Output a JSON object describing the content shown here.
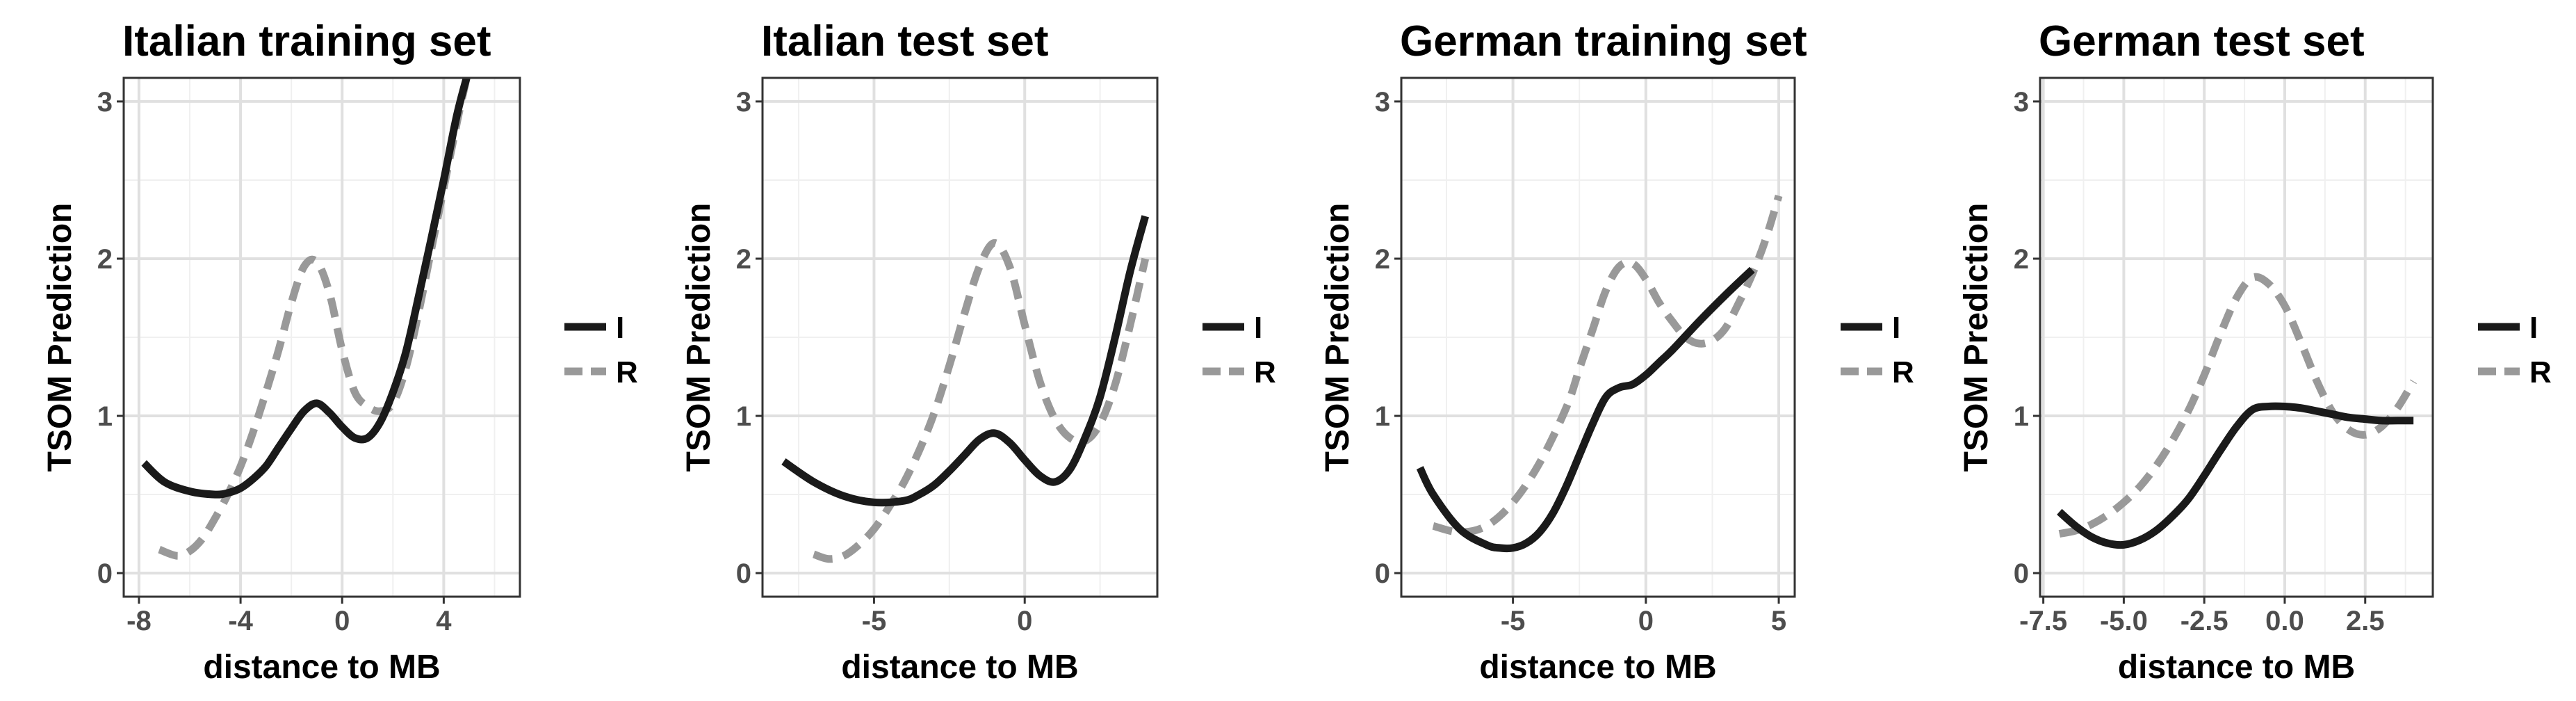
{
  "chart_data": [
    {
      "type": "line",
      "title": "Italian training set",
      "xlabel": "distance to MB",
      "ylabel": "TSOM Prediction",
      "xlim": [
        -8.6,
        7.0
      ],
      "ylim": [
        -0.15,
        3.15
      ],
      "xticks": [
        -8,
        -4,
        0,
        4
      ],
      "xtick_labels": [
        "-8",
        "-4",
        "0",
        "4"
      ],
      "yticks": [
        0,
        1,
        2,
        3
      ],
      "ytick_labels": [
        "0",
        "1",
        "2",
        "3"
      ],
      "grid": true,
      "legend_position": "right",
      "series": [
        {
          "name": "I",
          "style": "solid",
          "color": "#1a1a1a",
          "x": [
            -7.8,
            -7,
            -6,
            -5,
            -4.5,
            -4,
            -3.5,
            -3,
            -2.5,
            -2,
            -1.5,
            -1,
            -0.5,
            0,
            0.5,
            1,
            1.5,
            2,
            2.5,
            3,
            3.5,
            4,
            4.5,
            4.9
          ],
          "y": [
            0.7,
            0.58,
            0.52,
            0.5,
            0.51,
            0.54,
            0.6,
            0.68,
            0.8,
            0.92,
            1.03,
            1.08,
            1.02,
            0.93,
            0.86,
            0.86,
            0.96,
            1.15,
            1.4,
            1.75,
            2.12,
            2.5,
            2.9,
            3.15
          ]
        },
        {
          "name": "R",
          "style": "dashed",
          "color": "#999999",
          "x": [
            -7.2,
            -6.5,
            -6,
            -5.5,
            -5,
            -4.5,
            -4,
            -3.5,
            -3,
            -2.5,
            -2,
            -1.5,
            -1,
            -0.5,
            0,
            0.5,
            1,
            1.5,
            2,
            2.5,
            3,
            3.5,
            4,
            4.5,
            4.9
          ],
          "y": [
            0.15,
            0.11,
            0.14,
            0.22,
            0.35,
            0.5,
            0.68,
            0.9,
            1.15,
            1.42,
            1.72,
            1.95,
            1.98,
            1.78,
            1.42,
            1.15,
            1.06,
            1.03,
            1.08,
            1.3,
            1.65,
            2.05,
            2.45,
            2.85,
            3.15
          ]
        }
      ]
    },
    {
      "type": "line",
      "title": "Italian test set",
      "xlabel": "distance to MB",
      "ylabel": "TSOM Prediction",
      "xlim": [
        -8.7,
        4.4
      ],
      "ylim": [
        -0.15,
        3.15
      ],
      "xticks": [
        -5,
        0
      ],
      "xtick_labels": [
        "-5",
        "0"
      ],
      "yticks": [
        0,
        1,
        2,
        3
      ],
      "ytick_labels": [
        "0",
        "1",
        "2",
        "3"
      ],
      "grid": true,
      "legend_position": "right",
      "series": [
        {
          "name": "I",
          "style": "solid",
          "color": "#1a1a1a",
          "x": [
            -8,
            -7,
            -6,
            -5,
            -4,
            -3.5,
            -3,
            -2.5,
            -2,
            -1.5,
            -1,
            -0.5,
            0,
            0.5,
            1,
            1.5,
            2,
            2.5,
            3,
            3.5,
            4
          ],
          "y": [
            0.71,
            0.58,
            0.49,
            0.45,
            0.46,
            0.5,
            0.56,
            0.65,
            0.75,
            0.85,
            0.89,
            0.83,
            0.72,
            0.62,
            0.58,
            0.66,
            0.86,
            1.12,
            1.5,
            1.92,
            2.27
          ]
        },
        {
          "name": "R",
          "style": "dashed",
          "color": "#999999",
          "x": [
            -7,
            -6.5,
            -6,
            -5.5,
            -5,
            -4.5,
            -4,
            -3.5,
            -3,
            -2.5,
            -2,
            -1.5,
            -1,
            -0.5,
            0,
            0.5,
            1,
            1.5,
            2,
            2.5,
            3,
            3.5,
            4
          ],
          "y": [
            0.12,
            0.09,
            0.11,
            0.18,
            0.28,
            0.42,
            0.58,
            0.78,
            1.02,
            1.32,
            1.65,
            1.95,
            2.1,
            1.95,
            1.58,
            1.22,
            0.98,
            0.86,
            0.84,
            0.95,
            1.2,
            1.58,
            2.0
          ]
        }
      ]
    },
    {
      "type": "line",
      "title": "German training set",
      "xlabel": "distance to MB",
      "ylabel": "TSOM Prediction",
      "xlim": [
        -9.2,
        5.6
      ],
      "ylim": [
        -0.15,
        3.15
      ],
      "xticks": [
        -5,
        0,
        5
      ],
      "xtick_labels": [
        "-5",
        "0",
        "5"
      ],
      "yticks": [
        0,
        1,
        2,
        3
      ],
      "ytick_labels": [
        "0",
        "1",
        "2",
        "3"
      ],
      "grid": true,
      "legend_position": "right",
      "series": [
        {
          "name": "I",
          "style": "solid",
          "color": "#1a1a1a",
          "x": [
            -8.5,
            -8,
            -7,
            -6,
            -5.5,
            -5,
            -4.5,
            -4,
            -3.5,
            -3,
            -2.5,
            -2,
            -1.5,
            -1,
            -0.5,
            0,
            0.5,
            1,
            2,
            3,
            4
          ],
          "y": [
            0.67,
            0.5,
            0.28,
            0.18,
            0.16,
            0.16,
            0.19,
            0.26,
            0.38,
            0.55,
            0.75,
            0.95,
            1.12,
            1.18,
            1.2,
            1.26,
            1.34,
            1.42,
            1.6,
            1.77,
            1.93
          ]
        },
        {
          "name": "R",
          "style": "dashed",
          "color": "#999999",
          "x": [
            -8,
            -7,
            -6,
            -5,
            -4,
            -3,
            -2.5,
            -2,
            -1.5,
            -1,
            -0.5,
            0,
            0.5,
            1,
            1.5,
            2,
            2.5,
            3,
            3.5,
            4,
            4.5,
            5
          ],
          "y": [
            0.3,
            0.26,
            0.3,
            0.45,
            0.7,
            1.05,
            1.3,
            1.55,
            1.8,
            1.95,
            1.97,
            1.87,
            1.72,
            1.6,
            1.5,
            1.46,
            1.48,
            1.56,
            1.72,
            1.9,
            2.12,
            2.4
          ]
        }
      ]
    },
    {
      "type": "line",
      "title": "German test set",
      "xlabel": "distance to MB",
      "ylabel": "TSOM Prediction",
      "xlim": [
        -7.6,
        4.6
      ],
      "ylim": [
        -0.15,
        3.15
      ],
      "xticks": [
        -7.5,
        -5.0,
        -2.5,
        0.0,
        2.5
      ],
      "xtick_labels": [
        "-7.5",
        "-5.0",
        "-2.5",
        "0.0",
        "2.5"
      ],
      "yticks": [
        0,
        1,
        2,
        3
      ],
      "ytick_labels": [
        "0",
        "1",
        "2",
        "3"
      ],
      "grid": true,
      "legend_position": "right",
      "series": [
        {
          "name": "I",
          "style": "solid",
          "color": "#1a1a1a",
          "x": [
            -7,
            -6.5,
            -6,
            -5.5,
            -5,
            -4.5,
            -4,
            -3.5,
            -3,
            -2.5,
            -2,
            -1.5,
            -1,
            -0.5,
            0,
            0.5,
            1,
            1.5,
            2,
            2.5,
            3,
            3.5,
            4
          ],
          "y": [
            0.39,
            0.3,
            0.23,
            0.19,
            0.18,
            0.21,
            0.27,
            0.36,
            0.47,
            0.62,
            0.78,
            0.93,
            1.04,
            1.06,
            1.06,
            1.05,
            1.03,
            1.01,
            0.99,
            0.98,
            0.97,
            0.97,
            0.97
          ]
        },
        {
          "name": "R",
          "style": "dashed",
          "color": "#999999",
          "x": [
            -7,
            -6.5,
            -6,
            -5.5,
            -5,
            -4.5,
            -4,
            -3.5,
            -3,
            -2.5,
            -2,
            -1.5,
            -1,
            -0.5,
            0,
            0.5,
            1,
            1.5,
            2,
            2.5,
            3,
            3.5,
            4
          ],
          "y": [
            0.25,
            0.27,
            0.31,
            0.37,
            0.45,
            0.55,
            0.68,
            0.84,
            1.03,
            1.26,
            1.52,
            1.75,
            1.88,
            1.84,
            1.7,
            1.47,
            1.22,
            1.02,
            0.91,
            0.88,
            0.93,
            1.05,
            1.22
          ]
        }
      ]
    }
  ],
  "legend": {
    "items": [
      {
        "key": "I",
        "label": "I",
        "style": "solid",
        "color": "#1a1a1a"
      },
      {
        "key": "R",
        "label": "R",
        "style": "dashed",
        "color": "#999999"
      }
    ]
  }
}
